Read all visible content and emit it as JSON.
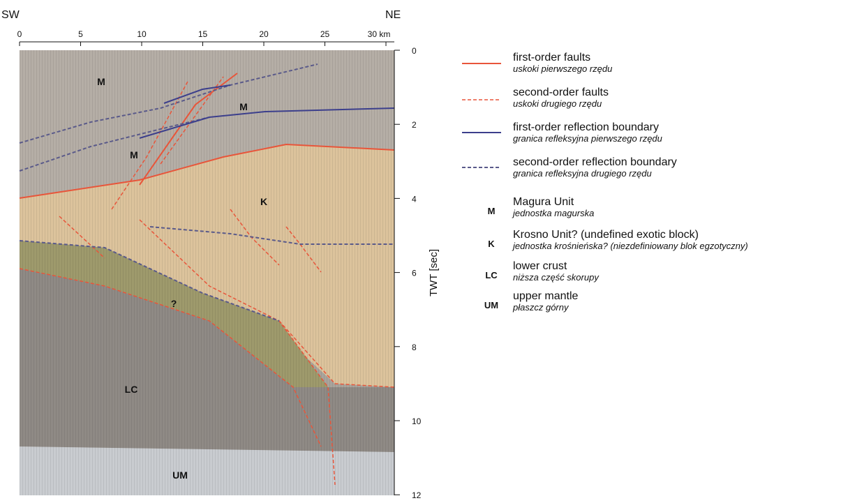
{
  "header": {
    "left": "SW",
    "right": "NE"
  },
  "top_axis": {
    "ticks": [
      0,
      5,
      10,
      15,
      20,
      25,
      {
        "value": 30,
        "label": "30 km"
      }
    ]
  },
  "right_axis": {
    "label": "TWT [sec]",
    "ticks": [
      0,
      2,
      4,
      6,
      8,
      10,
      12
    ]
  },
  "section_labels": [
    "M",
    "M",
    "M",
    "K",
    "?",
    "LC",
    "UM"
  ],
  "legend": {
    "lines": [
      {
        "title": "first-order faults",
        "subtitle": "uskoki pierwszego rzędu"
      },
      {
        "title": "second-order faults",
        "subtitle": "uskoki drugiego rzędu"
      },
      {
        "title": "first-order reflection boundary",
        "subtitle": "granica refleksyjna pierwszego rzędu"
      },
      {
        "title": "second-order reflection boundary",
        "subtitle": "granica refleksyjna drugiego rzędu"
      }
    ],
    "units": [
      {
        "code": "M",
        "title": "Magura Unit",
        "subtitle": "jednostka magurska"
      },
      {
        "code": "K",
        "title": "Krosno Unit? (undefined exotic block)",
        "subtitle": "jednostka krośnieńska? (niezdefiniowany blok egzotyczny)"
      },
      {
        "code": "LC",
        "title": "lower crust",
        "subtitle": "niższa część skorupy"
      },
      {
        "code": "UM",
        "title": "upper mantle",
        "subtitle": "płaszcz górny"
      }
    ]
  }
}
